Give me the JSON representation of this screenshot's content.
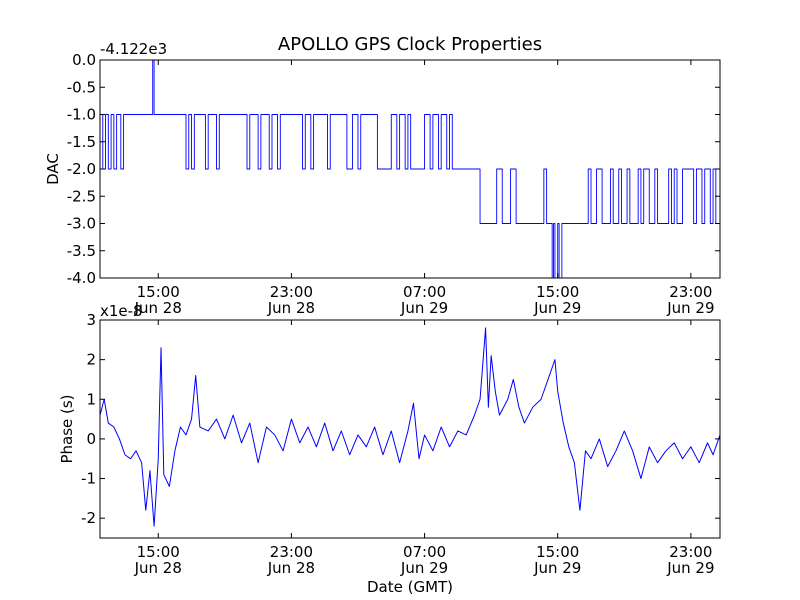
{
  "figure": {
    "title": "APOLLO GPS Clock Properties",
    "background": "#ffffff",
    "line_color": "#0000ff",
    "axis_color": "#000000"
  },
  "chart_data": [
    {
      "id": "dac",
      "type": "line",
      "ylabel": "DAC",
      "xlabel": "",
      "offset_text": "-4.122e3",
      "xlim": [
        "2010-06-28T11:30",
        "2010-06-30T00:45"
      ],
      "ylim": [
        -4.0,
        0.0
      ],
      "yticks": [
        0.0,
        -0.5,
        -1.0,
        -1.5,
        -2.0,
        -2.5,
        -3.0,
        -3.5,
        -4.0
      ],
      "ytick_labels": [
        "0.0",
        "-0.5",
        "-1.0",
        "-1.5",
        "-2.0",
        "-2.5",
        "-3.0",
        "-3.5",
        "-4.0"
      ],
      "xticks": [
        {
          "time": "2010-06-28T15:00",
          "label_time": "15:00",
          "label_date": "Jun 28"
        },
        {
          "time": "2010-06-28T23:00",
          "label_time": "23:00",
          "label_date": "Jun 28"
        },
        {
          "time": "2010-06-29T07:00",
          "label_time": "07:00",
          "label_date": "Jun 29"
        },
        {
          "time": "2010-06-29T15:00",
          "label_time": "15:00",
          "label_date": "Jun 29"
        },
        {
          "time": "2010-06-29T23:00",
          "label_time": "23:00",
          "label_date": "Jun 29"
        }
      ],
      "series": [
        {
          "step": true,
          "points": [
            [
              "2010-06-28T11:30",
              -1.0
            ],
            [
              "2010-06-28T11:40",
              -2.0
            ],
            [
              "2010-06-28T11:50",
              -1.0
            ],
            [
              "2010-06-28T12:00",
              -2.0
            ],
            [
              "2010-06-28T12:10",
              -1.0
            ],
            [
              "2010-06-28T12:20",
              -2.0
            ],
            [
              "2010-06-28T12:30",
              -1.0
            ],
            [
              "2010-06-28T12:45",
              -2.0
            ],
            [
              "2010-06-28T12:55",
              -1.0
            ],
            [
              "2010-06-28T14:40",
              0.0
            ],
            [
              "2010-06-28T14:45",
              -1.0
            ],
            [
              "2010-06-28T16:40",
              -2.0
            ],
            [
              "2010-06-28T16:50",
              -1.0
            ],
            [
              "2010-06-28T17:00",
              -2.0
            ],
            [
              "2010-06-28T17:10",
              -1.0
            ],
            [
              "2010-06-28T17:50",
              -2.0
            ],
            [
              "2010-06-28T18:00",
              -1.0
            ],
            [
              "2010-06-28T18:30",
              -2.0
            ],
            [
              "2010-06-28T18:40",
              -1.0
            ],
            [
              "2010-06-28T20:20",
              -2.0
            ],
            [
              "2010-06-28T20:30",
              -1.0
            ],
            [
              "2010-06-28T21:00",
              -2.0
            ],
            [
              "2010-06-28T21:10",
              -1.0
            ],
            [
              "2010-06-28T21:40",
              -2.0
            ],
            [
              "2010-06-28T21:50",
              -1.0
            ],
            [
              "2010-06-28T22:10",
              -2.0
            ],
            [
              "2010-06-28T22:20",
              -1.0
            ],
            [
              "2010-06-28T23:40",
              -2.0
            ],
            [
              "2010-06-28T23:50",
              -1.0
            ],
            [
              "2010-06-29T00:10",
              -2.0
            ],
            [
              "2010-06-29T00:20",
              -1.0
            ],
            [
              "2010-06-29T01:10",
              -2.0
            ],
            [
              "2010-06-29T01:20",
              -1.0
            ],
            [
              "2010-06-29T02:20",
              -2.0
            ],
            [
              "2010-06-29T02:40",
              -1.0
            ],
            [
              "2010-06-29T03:00",
              -2.0
            ],
            [
              "2010-06-29T03:10",
              -1.0
            ],
            [
              "2010-06-29T04:10",
              -2.0
            ],
            [
              "2010-06-29T05:00",
              -1.0
            ],
            [
              "2010-06-29T05:20",
              -2.0
            ],
            [
              "2010-06-29T05:30",
              -1.0
            ],
            [
              "2010-06-29T05:50",
              -2.0
            ],
            [
              "2010-06-29T06:00",
              -1.0
            ],
            [
              "2010-06-29T06:10",
              -2.0
            ],
            [
              "2010-06-29T07:00",
              -1.0
            ],
            [
              "2010-06-29T07:20",
              -2.0
            ],
            [
              "2010-06-29T07:30",
              -1.0
            ],
            [
              "2010-06-29T07:50",
              -2.0
            ],
            [
              "2010-06-29T08:00",
              -1.0
            ],
            [
              "2010-06-29T08:20",
              -2.0
            ],
            [
              "2010-06-29T08:30",
              -1.0
            ],
            [
              "2010-06-29T08:40",
              -2.0
            ],
            [
              "2010-06-29T10:20",
              -3.0
            ],
            [
              "2010-06-29T11:20",
              -2.0
            ],
            [
              "2010-06-29T11:40",
              -3.0
            ],
            [
              "2010-06-29T12:10",
              -2.0
            ],
            [
              "2010-06-29T12:30",
              -3.0
            ],
            [
              "2010-06-29T14:10",
              -2.0
            ],
            [
              "2010-06-29T14:20",
              -3.0
            ],
            [
              "2010-06-29T14:40",
              -4.0
            ],
            [
              "2010-06-29T14:45",
              -3.0
            ],
            [
              "2010-06-29T14:50",
              -4.0
            ],
            [
              "2010-06-29T15:00",
              -3.0
            ],
            [
              "2010-06-29T15:05",
              -4.0
            ],
            [
              "2010-06-29T15:15",
              -3.0
            ],
            [
              "2010-06-29T16:50",
              -2.0
            ],
            [
              "2010-06-29T17:00",
              -3.0
            ],
            [
              "2010-06-29T17:20",
              -2.0
            ],
            [
              "2010-06-29T17:40",
              -3.0
            ],
            [
              "2010-06-29T18:10",
              -2.0
            ],
            [
              "2010-06-29T18:20",
              -3.0
            ],
            [
              "2010-06-29T18:40",
              -2.0
            ],
            [
              "2010-06-29T18:50",
              -3.0
            ],
            [
              "2010-06-29T19:10",
              -2.0
            ],
            [
              "2010-06-29T19:20",
              -3.0
            ],
            [
              "2010-06-29T19:50",
              -2.0
            ],
            [
              "2010-06-29T20:00",
              -3.0
            ],
            [
              "2010-06-29T20:10",
              -2.0
            ],
            [
              "2010-06-29T20:30",
              -3.0
            ],
            [
              "2010-06-29T20:50",
              -2.0
            ],
            [
              "2010-06-29T21:00",
              -3.0
            ],
            [
              "2010-06-29T21:40",
              -2.0
            ],
            [
              "2010-06-29T21:50",
              -3.0
            ],
            [
              "2010-06-29T22:00",
              -2.0
            ],
            [
              "2010-06-29T22:10",
              -3.0
            ],
            [
              "2010-06-29T22:30",
              -2.0
            ],
            [
              "2010-06-29T23:10",
              -3.0
            ],
            [
              "2010-06-29T23:20",
              -2.0
            ],
            [
              "2010-06-29T23:40",
              -3.0
            ],
            [
              "2010-06-29T23:50",
              -2.0
            ],
            [
              "2010-06-30T00:10",
              -3.0
            ],
            [
              "2010-06-30T00:20",
              -2.0
            ],
            [
              "2010-06-30T00:30",
              -3.0
            ],
            [
              "2010-06-30T00:45",
              -3.0
            ]
          ]
        }
      ]
    },
    {
      "id": "phase",
      "type": "line",
      "ylabel": "Phase (s)",
      "xlabel": "Date (GMT)",
      "offset_text": "x1e-8",
      "xlim": [
        "2010-06-28T11:30",
        "2010-06-30T00:45"
      ],
      "ylim": [
        -2.5,
        3.0
      ],
      "yticks": [
        -2,
        -1,
        0,
        1,
        2,
        3
      ],
      "ytick_labels": [
        "-2",
        "-1",
        "0",
        "1",
        "2",
        "3"
      ],
      "xticks": [
        {
          "time": "2010-06-28T15:00",
          "label_time": "15:00",
          "label_date": "Jun 28"
        },
        {
          "time": "2010-06-28T23:00",
          "label_time": "23:00",
          "label_date": "Jun 28"
        },
        {
          "time": "2010-06-29T07:00",
          "label_time": "07:00",
          "label_date": "Jun 29"
        },
        {
          "time": "2010-06-29T15:00",
          "label_time": "15:00",
          "label_date": "Jun 29"
        },
        {
          "time": "2010-06-29T23:00",
          "label_time": "23:00",
          "label_date": "Jun 29"
        }
      ],
      "series": [
        {
          "step": false,
          "points": [
            [
              "2010-06-28T11:30",
              0.6
            ],
            [
              "2010-06-28T11:45",
              1.0
            ],
            [
              "2010-06-28T12:00",
              0.4
            ],
            [
              "2010-06-28T12:20",
              0.3
            ],
            [
              "2010-06-28T12:40",
              0.0
            ],
            [
              "2010-06-28T13:00",
              -0.4
            ],
            [
              "2010-06-28T13:20",
              -0.5
            ],
            [
              "2010-06-28T13:40",
              -0.3
            ],
            [
              "2010-06-28T14:00",
              -0.6
            ],
            [
              "2010-06-28T14:15",
              -1.8
            ],
            [
              "2010-06-28T14:30",
              -0.8
            ],
            [
              "2010-06-28T14:45",
              -2.2
            ],
            [
              "2010-06-28T15:00",
              -0.5
            ],
            [
              "2010-06-28T15:10",
              2.3
            ],
            [
              "2010-06-28T15:20",
              -0.9
            ],
            [
              "2010-06-28T15:40",
              -1.2
            ],
            [
              "2010-06-28T16:00",
              -0.3
            ],
            [
              "2010-06-28T16:20",
              0.3
            ],
            [
              "2010-06-28T16:40",
              0.1
            ],
            [
              "2010-06-28T17:00",
              0.5
            ],
            [
              "2010-06-28T17:15",
              1.6
            ],
            [
              "2010-06-28T17:30",
              0.3
            ],
            [
              "2010-06-28T18:00",
              0.2
            ],
            [
              "2010-06-28T18:30",
              0.5
            ],
            [
              "2010-06-28T19:00",
              0.0
            ],
            [
              "2010-06-28T19:30",
              0.6
            ],
            [
              "2010-06-28T20:00",
              -0.1
            ],
            [
              "2010-06-28T20:30",
              0.4
            ],
            [
              "2010-06-28T21:00",
              -0.6
            ],
            [
              "2010-06-28T21:30",
              0.3
            ],
            [
              "2010-06-28T22:00",
              0.1
            ],
            [
              "2010-06-28T22:30",
              -0.3
            ],
            [
              "2010-06-28T23:00",
              0.5
            ],
            [
              "2010-06-28T23:30",
              -0.1
            ],
            [
              "2010-06-29T00:00",
              0.3
            ],
            [
              "2010-06-29T00:30",
              -0.2
            ],
            [
              "2010-06-29T01:00",
              0.4
            ],
            [
              "2010-06-29T01:30",
              -0.3
            ],
            [
              "2010-06-29T02:00",
              0.2
            ],
            [
              "2010-06-29T02:30",
              -0.4
            ],
            [
              "2010-06-29T03:00",
              0.1
            ],
            [
              "2010-06-29T03:30",
              -0.2
            ],
            [
              "2010-06-29T04:00",
              0.3
            ],
            [
              "2010-06-29T04:30",
              -0.4
            ],
            [
              "2010-06-29T05:00",
              0.2
            ],
            [
              "2010-06-29T05:30",
              -0.6
            ],
            [
              "2010-06-29T06:00",
              0.2
            ],
            [
              "2010-06-29T06:20",
              0.9
            ],
            [
              "2010-06-29T06:40",
              -0.5
            ],
            [
              "2010-06-29T07:00",
              0.1
            ],
            [
              "2010-06-29T07:30",
              -0.3
            ],
            [
              "2010-06-29T08:00",
              0.3
            ],
            [
              "2010-06-29T08:30",
              -0.2
            ],
            [
              "2010-06-29T09:00",
              0.2
            ],
            [
              "2010-06-29T09:30",
              0.1
            ],
            [
              "2010-06-29T10:00",
              0.6
            ],
            [
              "2010-06-29T10:20",
              1.0
            ],
            [
              "2010-06-29T10:40",
              2.8
            ],
            [
              "2010-06-29T10:50",
              0.8
            ],
            [
              "2010-06-29T11:00",
              2.1
            ],
            [
              "2010-06-29T11:15",
              1.2
            ],
            [
              "2010-06-29T11:30",
              0.6
            ],
            [
              "2010-06-29T12:00",
              1.0
            ],
            [
              "2010-06-29T12:20",
              1.5
            ],
            [
              "2010-06-29T12:40",
              0.8
            ],
            [
              "2010-06-29T13:00",
              0.4
            ],
            [
              "2010-06-29T13:30",
              0.8
            ],
            [
              "2010-06-29T14:00",
              1.0
            ],
            [
              "2010-06-29T14:30",
              1.6
            ],
            [
              "2010-06-29T14:50",
              2.0
            ],
            [
              "2010-06-29T15:00",
              1.2
            ],
            [
              "2010-06-29T15:20",
              0.4
            ],
            [
              "2010-06-29T15:40",
              -0.2
            ],
            [
              "2010-06-29T16:00",
              -0.6
            ],
            [
              "2010-06-29T16:20",
              -1.8
            ],
            [
              "2010-06-29T16:40",
              -0.3
            ],
            [
              "2010-06-29T17:00",
              -0.5
            ],
            [
              "2010-06-29T17:30",
              0.0
            ],
            [
              "2010-06-29T18:00",
              -0.7
            ],
            [
              "2010-06-29T18:30",
              -0.3
            ],
            [
              "2010-06-29T19:00",
              0.2
            ],
            [
              "2010-06-29T19:30",
              -0.3
            ],
            [
              "2010-06-29T20:00",
              -1.0
            ],
            [
              "2010-06-29T20:30",
              -0.2
            ],
            [
              "2010-06-29T21:00",
              -0.6
            ],
            [
              "2010-06-29T21:30",
              -0.3
            ],
            [
              "2010-06-29T22:00",
              -0.1
            ],
            [
              "2010-06-29T22:30",
              -0.5
            ],
            [
              "2010-06-29T23:00",
              -0.2
            ],
            [
              "2010-06-29T23:30",
              -0.6
            ],
            [
              "2010-06-30T00:00",
              -0.1
            ],
            [
              "2010-06-30T00:20",
              -0.4
            ],
            [
              "2010-06-30T00:45",
              0.1
            ]
          ]
        }
      ]
    }
  ]
}
